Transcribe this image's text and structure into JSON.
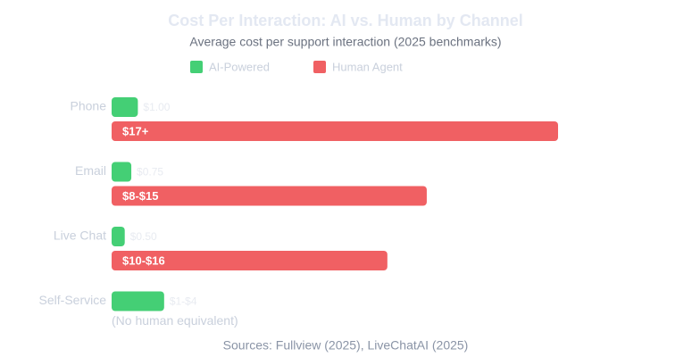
{
  "chart_data": {
    "type": "hbar",
    "title": "Cost Per Interaction: AI vs. Human by Channel",
    "subtitle": "Average cost per support interaction (2025 benchmarks)",
    "categories": [
      "Phone",
      "Email",
      "Live Chat",
      "Self-Service"
    ],
    "series": [
      {
        "name": "AI-Powered",
        "color": "#44cf75",
        "values": [
          1,
          0.75,
          0.5,
          2
        ],
        "value_labels": [
          "$1.00",
          "$0.75",
          "$0.50",
          "$1-$4"
        ]
      },
      {
        "name": "Human Agent",
        "color": "#f06063",
        "values": [
          17,
          12,
          10.5,
          null
        ],
        "value_labels": [
          "$17+",
          "$8-$15",
          "$10-$16",
          null
        ]
      }
    ],
    "xlim": [
      0,
      17
    ],
    "annotations": [
      "(No human equivalent)"
    ],
    "source": "Sources: Fullview (2025), LiveChatAI (2025)"
  }
}
